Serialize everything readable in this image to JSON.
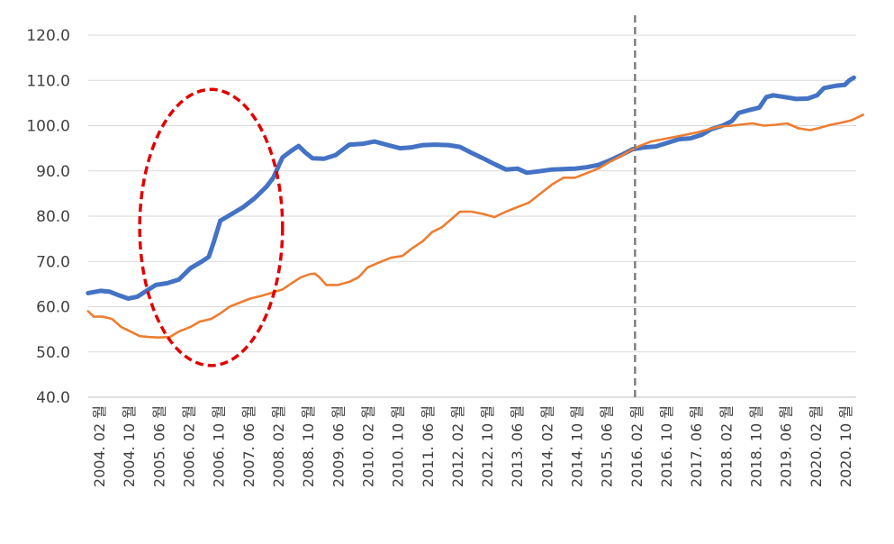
{
  "chart_data": {
    "type": "line",
    "ylim": [
      40,
      120
    ],
    "yticks": [
      "120.0",
      "110.0",
      "100.0",
      "90.0",
      "80.0",
      "70.0",
      "60.0",
      "50.0",
      "40.0"
    ],
    "xlim": [
      2004.0833,
      2020.75
    ],
    "xticks": [
      "2004. 02 월",
      "2004. 10 월",
      "2005. 06 월",
      "2006. 02 월",
      "2006. 10 월",
      "2007. 06 월",
      "2008. 02 월",
      "2008. 10 월",
      "2009. 06 월",
      "2010. 02 월",
      "2010. 10 월",
      "2011. 06 월",
      "2012. 02 월",
      "2012. 10 월",
      "2013. 06 월",
      "2014. 02 월",
      "2014. 10 월",
      "2015. 06 월",
      "2016. 02 월",
      "2016. 10 월",
      "2017. 06 월",
      "2018. 02 월",
      "2018. 10 월",
      "2019. 06 월",
      "2020. 02 월",
      "2020. 10 월"
    ],
    "grid": "horizontal",
    "legend": "none",
    "series": [
      {
        "color": "#4472C4",
        "points": [
          [
            2004.08,
            63.0
          ],
          [
            2004.35,
            63.5
          ],
          [
            2004.55,
            63.3
          ],
          [
            2004.75,
            62.5
          ],
          [
            2004.95,
            61.8
          ],
          [
            2005.15,
            62.2
          ],
          [
            2005.35,
            63.5
          ],
          [
            2005.55,
            64.8
          ],
          [
            2005.8,
            65.2
          ],
          [
            2006.05,
            66.0
          ],
          [
            2006.3,
            68.5
          ],
          [
            2006.55,
            70.0
          ],
          [
            2006.7,
            71.0
          ],
          [
            2006.8,
            74.0
          ],
          [
            2006.95,
            79.0
          ],
          [
            2007.2,
            80.5
          ],
          [
            2007.45,
            82.0
          ],
          [
            2007.7,
            84.0
          ],
          [
            2007.95,
            86.5
          ],
          [
            2008.1,
            88.5
          ],
          [
            2008.3,
            93.0
          ],
          [
            2008.5,
            94.5
          ],
          [
            2008.65,
            95.5
          ],
          [
            2008.8,
            94.0
          ],
          [
            2008.95,
            92.8
          ],
          [
            2009.2,
            92.7
          ],
          [
            2009.45,
            93.5
          ],
          [
            2009.75,
            95.8
          ],
          [
            2010.05,
            96.0
          ],
          [
            2010.3,
            96.5
          ],
          [
            2010.55,
            95.8
          ],
          [
            2010.85,
            95.0
          ],
          [
            2011.1,
            95.2
          ],
          [
            2011.35,
            95.7
          ],
          [
            2011.6,
            95.8
          ],
          [
            2011.9,
            95.7
          ],
          [
            2012.15,
            95.3
          ],
          [
            2012.4,
            94.0
          ],
          [
            2012.65,
            92.8
          ],
          [
            2012.9,
            91.5
          ],
          [
            2013.15,
            90.3
          ],
          [
            2013.4,
            90.5
          ],
          [
            2013.6,
            89.6
          ],
          [
            2013.85,
            89.9
          ],
          [
            2014.15,
            90.3
          ],
          [
            2014.4,
            90.4
          ],
          [
            2014.65,
            90.5
          ],
          [
            2014.9,
            90.8
          ],
          [
            2015.15,
            91.3
          ],
          [
            2015.4,
            92.3
          ],
          [
            2015.65,
            93.5
          ],
          [
            2015.9,
            94.8
          ],
          [
            2016.15,
            95.2
          ],
          [
            2016.4,
            95.4
          ],
          [
            2016.65,
            96.2
          ],
          [
            2016.9,
            97.0
          ],
          [
            2017.15,
            97.2
          ],
          [
            2017.4,
            98.0
          ],
          [
            2017.6,
            99.2
          ],
          [
            2017.85,
            100.0
          ],
          [
            2018.05,
            101.0
          ],
          [
            2018.2,
            102.8
          ],
          [
            2018.45,
            103.5
          ],
          [
            2018.65,
            104.0
          ],
          [
            2018.8,
            106.3
          ],
          [
            2018.95,
            106.7
          ],
          [
            2019.2,
            106.3
          ],
          [
            2019.45,
            105.9
          ],
          [
            2019.7,
            106.0
          ],
          [
            2019.9,
            106.7
          ],
          [
            2020.05,
            108.3
          ],
          [
            2020.3,
            108.8
          ],
          [
            2020.5,
            109.0
          ],
          [
            2020.6,
            110.0
          ],
          [
            2020.7,
            110.6
          ]
        ]
      },
      {
        "color": "#ED7D31",
        "points": [
          [
            2004.08,
            59.0
          ],
          [
            2004.2,
            57.8
          ],
          [
            2004.4,
            57.8
          ],
          [
            2004.6,
            57.3
          ],
          [
            2004.8,
            55.5
          ],
          [
            2005.0,
            54.5
          ],
          [
            2005.2,
            53.5
          ],
          [
            2005.4,
            53.3
          ],
          [
            2005.6,
            53.2
          ],
          [
            2005.85,
            53.3
          ],
          [
            2006.05,
            54.5
          ],
          [
            2006.3,
            55.5
          ],
          [
            2006.5,
            56.7
          ],
          [
            2006.75,
            57.3
          ],
          [
            2006.95,
            58.5
          ],
          [
            2007.15,
            60.0
          ],
          [
            2007.4,
            61.0
          ],
          [
            2007.6,
            61.8
          ],
          [
            2007.85,
            62.4
          ],
          [
            2008.05,
            63.0
          ],
          [
            2008.3,
            63.8
          ],
          [
            2008.5,
            65.2
          ],
          [
            2008.7,
            66.5
          ],
          [
            2008.9,
            67.2
          ],
          [
            2009.0,
            67.3
          ],
          [
            2009.1,
            66.5
          ],
          [
            2009.25,
            64.8
          ],
          [
            2009.5,
            64.8
          ],
          [
            2009.75,
            65.5
          ],
          [
            2009.95,
            66.5
          ],
          [
            2010.15,
            68.7
          ],
          [
            2010.4,
            69.8
          ],
          [
            2010.65,
            70.8
          ],
          [
            2010.9,
            71.2
          ],
          [
            2011.1,
            72.8
          ],
          [
            2011.35,
            74.5
          ],
          [
            2011.55,
            76.5
          ],
          [
            2011.75,
            77.5
          ],
          [
            2011.95,
            79.2
          ],
          [
            2012.15,
            81.0
          ],
          [
            2012.4,
            81.0
          ],
          [
            2012.65,
            80.5
          ],
          [
            2012.9,
            79.8
          ],
          [
            2013.15,
            81.0
          ],
          [
            2013.4,
            82.0
          ],
          [
            2013.65,
            83.0
          ],
          [
            2013.9,
            85.0
          ],
          [
            2014.15,
            87.0
          ],
          [
            2014.4,
            88.5
          ],
          [
            2014.65,
            88.5
          ],
          [
            2014.9,
            89.5
          ],
          [
            2015.15,
            90.5
          ],
          [
            2015.4,
            92.0
          ],
          [
            2015.65,
            93.3
          ],
          [
            2015.85,
            94.5
          ],
          [
            2016.05,
            95.5
          ],
          [
            2016.3,
            96.5
          ],
          [
            2016.55,
            97.0
          ],
          [
            2016.8,
            97.5
          ],
          [
            2017.05,
            98.0
          ],
          [
            2017.3,
            98.5
          ],
          [
            2017.55,
            99.2
          ],
          [
            2017.8,
            99.8
          ],
          [
            2018.05,
            100.0
          ],
          [
            2018.3,
            100.3
          ],
          [
            2018.5,
            100.5
          ],
          [
            2018.75,
            100.0
          ],
          [
            2019.0,
            100.2
          ],
          [
            2019.25,
            100.5
          ],
          [
            2019.5,
            99.4
          ],
          [
            2019.75,
            99.0
          ],
          [
            2019.95,
            99.5
          ],
          [
            2020.2,
            100.2
          ],
          [
            2020.45,
            100.7
          ],
          [
            2020.65,
            101.2
          ],
          [
            2020.9,
            102.4
          ]
        ]
      }
    ],
    "reference_line": {
      "x": 2015.95,
      "color": "#7F7F7F",
      "style": "dashed"
    },
    "highlight_ellipse": {
      "center_x": 2006.75,
      "center_y": 77.5,
      "radius_x": 1.55,
      "radius_y": 30.5,
      "color": "#E00000",
      "style": "dashed"
    }
  }
}
